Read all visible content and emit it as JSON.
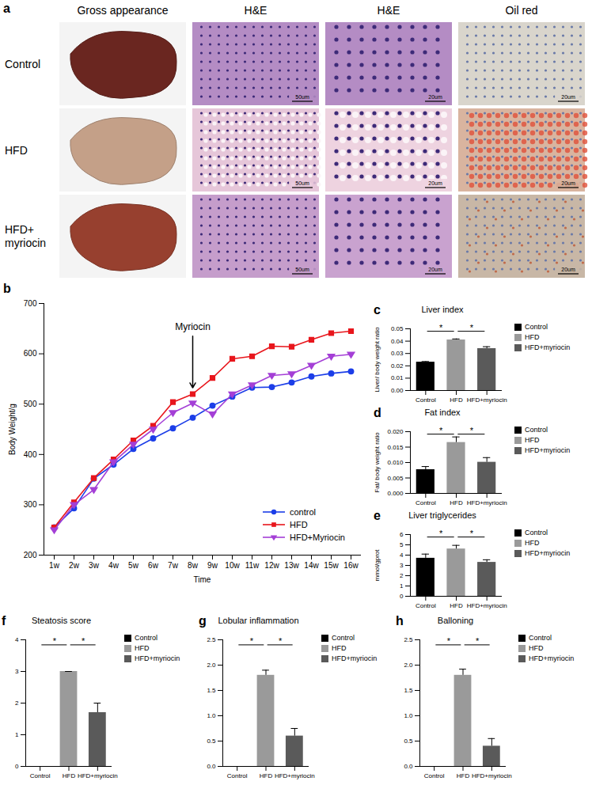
{
  "figure_a": {
    "panel": "a",
    "columns": [
      "Gross appearance",
      "H&E",
      "H&E",
      "Oil red"
    ],
    "rows": [
      "Control",
      "HFD",
      "HFD+\nmyriocin"
    ],
    "scale_bars": [
      null,
      "50um",
      "20um",
      "20um"
    ]
  },
  "chart_data": [
    {
      "panel": "b",
      "type": "line",
      "xlabel": "Time",
      "ylabel": "Body Weight/g",
      "categories": [
        "1w",
        "2w",
        "3w",
        "4w",
        "5w",
        "6w",
        "7w",
        "8w",
        "9w",
        "10w",
        "11w",
        "12w",
        "13w",
        "14w",
        "15w",
        "16w"
      ],
      "ylim": [
        200,
        700
      ],
      "yticks": [
        200,
        300,
        400,
        500,
        600,
        700
      ],
      "legend": "bottom-right",
      "annotations": [
        {
          "text": "Myriocin",
          "x": "8w"
        }
      ],
      "series": [
        {
          "name": "control",
          "color": "#1c3ee8",
          "marker": "circle",
          "values": [
            255,
            293,
            352,
            380,
            411,
            432,
            452,
            473,
            497,
            515,
            533,
            534,
            543,
            555,
            561,
            565
          ]
        },
        {
          "name": "HFD",
          "color": "#e8161c",
          "marker": "square",
          "values": [
            255,
            305,
            353,
            390,
            428,
            457,
            504,
            520,
            552,
            590,
            595,
            615,
            614,
            628,
            641,
            645
          ]
        },
        {
          "name": "HFD+Myriocin",
          "color": "#a43fd6",
          "marker": "triangle-down",
          "values": [
            250,
            300,
            330,
            385,
            420,
            450,
            483,
            502,
            480,
            520,
            538,
            557,
            560,
            577,
            595,
            599
          ]
        }
      ]
    },
    {
      "panel": "c",
      "type": "bar",
      "title": "Liver index",
      "ylabel": "Liver/ body weight ratio",
      "categories": [
        "Control",
        "HFD",
        "HFD+myriocin"
      ],
      "values": [
        0.023,
        0.041,
        0.034
      ],
      "errors": [
        0.0005,
        0.0008,
        0.0015
      ],
      "colors": [
        "#000000",
        "#9a9a9a",
        "#5a5a5a"
      ],
      "legend": "right",
      "ylim": [
        0,
        0.05
      ],
      "yticks": [
        {
          "value": 0,
          "label": "0.00"
        },
        {
          "value": 0.01,
          "label": "0.01"
        },
        {
          "value": 0.02,
          "label": "0.02"
        },
        {
          "value": 0.03,
          "label": "0.03"
        },
        {
          "value": 0.04,
          "label": "0.04"
        },
        {
          "value": 0.05,
          "label": "0.05"
        }
      ],
      "significance": [
        {
          "pair": [
            "Control",
            "HFD"
          ],
          "label": "*"
        },
        {
          "pair": [
            "HFD",
            "HFD+myriocin"
          ],
          "label": "*"
        }
      ]
    },
    {
      "panel": "d",
      "type": "bar",
      "title": "Fat index",
      "ylabel": "Fat/ body weight ratio",
      "categories": [
        "Control",
        "HFD",
        "HFD+myriocin"
      ],
      "values": [
        0.0077,
        0.0165,
        0.0101
      ],
      "errors": [
        0.001,
        0.0018,
        0.0015
      ],
      "colors": [
        "#000000",
        "#9a9a9a",
        "#5a5a5a"
      ],
      "legend": "right",
      "ylim": [
        0,
        0.02
      ],
      "yticks": [
        {
          "value": 0,
          "label": "0.000"
        },
        {
          "value": 0.005,
          "label": "0.005"
        },
        {
          "value": 0.01,
          "label": "0.010"
        },
        {
          "value": 0.015,
          "label": "0.015"
        },
        {
          "value": 0.02,
          "label": "0.020"
        }
      ],
      "significance": [
        {
          "pair": [
            "Control",
            "HFD"
          ],
          "label": "*"
        },
        {
          "pair": [
            "HFD",
            "HFD+myriocin"
          ],
          "label": "*"
        }
      ]
    },
    {
      "panel": "e",
      "type": "bar",
      "title": "Liver triglycerides",
      "ylabel": "mmol/gprot",
      "categories": [
        "Control",
        "HFD",
        "HFD+myriocin"
      ],
      "values": [
        3.7,
        4.6,
        3.3
      ],
      "errors": [
        0.4,
        0.35,
        0.25
      ],
      "colors": [
        "#000000",
        "#9a9a9a",
        "#5a5a5a"
      ],
      "legend": "right",
      "ylim": [
        0,
        6
      ],
      "yticks": [
        0,
        1,
        2,
        3,
        4,
        5,
        6
      ],
      "significance": [
        {
          "pair": [
            "Control",
            "HFD"
          ],
          "label": "*"
        },
        {
          "pair": [
            "HFD",
            "HFD+myriocin"
          ],
          "label": "*"
        }
      ]
    },
    {
      "panel": "f",
      "type": "bar",
      "title": "Steatosis score",
      "categories": [
        "Control",
        "HFD",
        "HFD+myriocin"
      ],
      "values": [
        0,
        3,
        1.7
      ],
      "errors": [
        0,
        0,
        0.3
      ],
      "colors": [
        "#000000",
        "#9a9a9a",
        "#5a5a5a"
      ],
      "legend": "right",
      "ylim": [
        0,
        4
      ],
      "yticks": [
        0,
        1,
        2,
        3,
        4
      ],
      "significance": [
        {
          "pair": [
            "Control",
            "HFD"
          ],
          "label": "*"
        },
        {
          "pair": [
            "HFD",
            "HFD+myriocin"
          ],
          "label": "*"
        }
      ]
    },
    {
      "panel": "g",
      "type": "bar",
      "title": "Lobular inflammation",
      "categories": [
        "Control",
        "HFD",
        "HFD+myriocin"
      ],
      "values": [
        0,
        1.8,
        0.6
      ],
      "errors": [
        0,
        0.1,
        0.15
      ],
      "colors": [
        "#000000",
        "#9a9a9a",
        "#5a5a5a"
      ],
      "legend": "right",
      "ylim": [
        0,
        2.5
      ],
      "yticks": [
        {
          "value": 0,
          "label": "0.0"
        },
        {
          "value": 0.5,
          "label": "0.5"
        },
        {
          "value": 1,
          "label": "1.0"
        },
        {
          "value": 1.5,
          "label": "1.5"
        },
        {
          "value": 2,
          "label": "2.0"
        },
        {
          "value": 2.5,
          "label": "2.5"
        }
      ],
      "significance": [
        {
          "pair": [
            "Control",
            "HFD"
          ],
          "label": "*"
        },
        {
          "pair": [
            "HFD",
            "HFD+myriocin"
          ],
          "label": "*"
        }
      ]
    },
    {
      "panel": "h",
      "type": "bar",
      "title": "Balloning",
      "categories": [
        "Control",
        "HFD",
        "HFD+myriocin"
      ],
      "values": [
        0,
        1.8,
        0.4
      ],
      "errors": [
        0,
        0.12,
        0.15
      ],
      "colors": [
        "#000000",
        "#9a9a9a",
        "#5a5a5a"
      ],
      "legend": "right",
      "ylim": [
        0,
        2.5
      ],
      "yticks": [
        {
          "value": 0,
          "label": "0.0"
        },
        {
          "value": 0.5,
          "label": "0.5"
        },
        {
          "value": 1,
          "label": "1.0"
        },
        {
          "value": 1.5,
          "label": "1.5"
        },
        {
          "value": 2,
          "label": "2.0"
        },
        {
          "value": 2.5,
          "label": "2.5"
        }
      ],
      "significance": [
        {
          "pair": [
            "Control",
            "HFD"
          ],
          "label": "*"
        },
        {
          "pair": [
            "HFD",
            "HFD+myriocin"
          ],
          "label": "*"
        }
      ]
    }
  ]
}
